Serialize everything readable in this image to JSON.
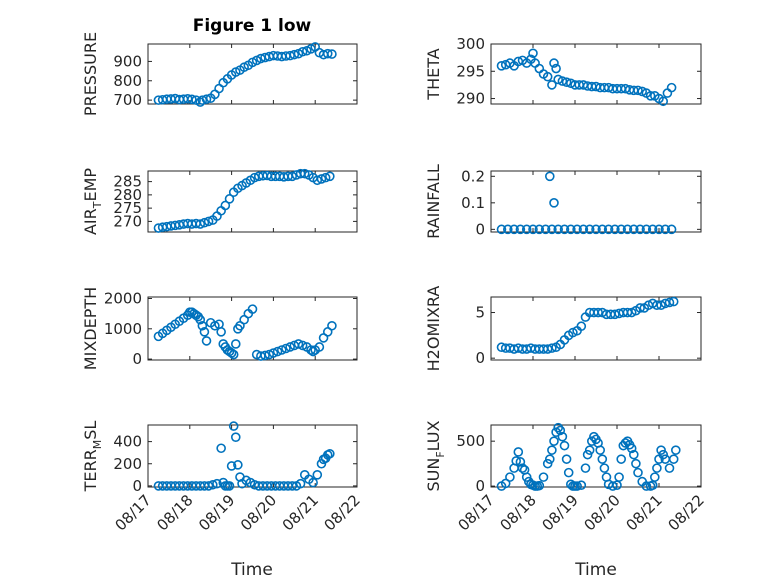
{
  "figure": {
    "title": "Figure 1 low",
    "marker_color": "#0072BD",
    "x_tick_labels": [
      "08/17",
      "08/18",
      "08/19",
      "08/20",
      "08/21",
      "08/22"
    ],
    "x_tick_values": [
      0,
      1,
      2,
      3,
      4,
      5
    ],
    "xlabel": "Time"
  },
  "chart_data": [
    {
      "type": "scatter",
      "ylabel": "PRESSURE",
      "ylabel_sub": "",
      "ylabel_tail": "",
      "ylim": [
        680,
        990
      ],
      "yticks": [
        700,
        800,
        900
      ],
      "grid": true,
      "x": [
        0.25,
        0.35,
        0.45,
        0.55,
        0.65,
        0.75,
        0.85,
        0.95,
        1.05,
        1.15,
        1.25,
        1.3,
        1.4,
        1.5,
        1.6,
        1.7,
        1.8,
        1.9,
        2.0,
        2.1,
        2.2,
        2.3,
        2.4,
        2.5,
        2.6,
        2.7,
        2.8,
        2.9,
        3.0,
        3.1,
        3.2,
        3.3,
        3.4,
        3.5,
        3.6,
        3.7,
        3.8,
        3.9,
        4.0,
        4.1,
        4.2,
        4.3,
        4.4
      ],
      "y": [
        700,
        702,
        705,
        706,
        708,
        703,
        705,
        707,
        704,
        700,
        690,
        700,
        705,
        710,
        730,
        760,
        790,
        810,
        830,
        845,
        855,
        870,
        880,
        895,
        905,
        915,
        920,
        925,
        930,
        928,
        925,
        928,
        930,
        935,
        940,
        950,
        955,
        965,
        975,
        945,
        935,
        940,
        938
      ]
    },
    {
      "type": "scatter",
      "ylabel": "THETA",
      "ylabel_sub": "",
      "ylabel_tail": "",
      "ylim": [
        289,
        300
      ],
      "yticks": [
        290,
        295,
        300
      ],
      "grid": true,
      "x": [
        0.25,
        0.35,
        0.45,
        0.55,
        0.65,
        0.75,
        0.85,
        0.95,
        1.0,
        1.05,
        1.15,
        1.25,
        1.35,
        1.45,
        1.5,
        1.55,
        1.6,
        1.7,
        1.8,
        1.9,
        2.0,
        2.1,
        2.2,
        2.3,
        2.4,
        2.5,
        2.6,
        2.7,
        2.8,
        2.9,
        3.0,
        3.1,
        3.2,
        3.3,
        3.4,
        3.5,
        3.6,
        3.7,
        3.8,
        3.9,
        4.0,
        4.1,
        4.2,
        4.3
      ],
      "y": [
        296,
        296.2,
        296.5,
        296,
        296.8,
        297,
        296.5,
        297.2,
        298.3,
        296.5,
        295.5,
        294.5,
        294,
        292.5,
        296.5,
        295.5,
        293.5,
        293.2,
        293,
        292.8,
        292.5,
        292.5,
        292.5,
        292.3,
        292.2,
        292.2,
        292,
        292,
        292,
        291.8,
        291.8,
        291.8,
        291.8,
        291.6,
        291.5,
        291.5,
        291.3,
        291,
        290.5,
        290.5,
        290,
        289.5,
        291,
        292
      ]
    },
    {
      "type": "scatter",
      "ylabel": "AIR",
      "ylabel_sub": "T",
      "ylabel_tail": "EMP",
      "ylim": [
        266,
        289
      ],
      "yticks": [
        270,
        275,
        280,
        285
      ],
      "grid": true,
      "x": [
        0.25,
        0.35,
        0.45,
        0.55,
        0.65,
        0.75,
        0.85,
        0.95,
        1.05,
        1.15,
        1.25,
        1.35,
        1.45,
        1.55,
        1.65,
        1.75,
        1.85,
        1.95,
        2.05,
        2.15,
        2.25,
        2.35,
        2.45,
        2.55,
        2.65,
        2.75,
        2.85,
        2.95,
        3.05,
        3.15,
        3.25,
        3.35,
        3.45,
        3.55,
        3.65,
        3.75,
        3.85,
        3.95,
        4.05,
        4.15,
        4.25,
        4.35
      ],
      "y": [
        267.5,
        267.8,
        268,
        268.3,
        268.5,
        268.7,
        269,
        269.2,
        269,
        269.2,
        269,
        269.5,
        270,
        270.5,
        272,
        274,
        276,
        278.5,
        281,
        282.5,
        283.5,
        284.5,
        285.5,
        286.5,
        287,
        287.2,
        287.3,
        287,
        287,
        287,
        286.8,
        287,
        287,
        287.5,
        288,
        288,
        287.5,
        286.5,
        285.5,
        286,
        286.5,
        287
      ]
    },
    {
      "type": "scatter",
      "ylabel": "RAINFALL",
      "ylabel_sub": "",
      "ylabel_tail": "",
      "ylim": [
        -0.01,
        0.22
      ],
      "yticks": [
        0,
        0.1,
        0.2
      ],
      "grid": true,
      "x": [
        0.25,
        0.4,
        0.55,
        0.7,
        0.85,
        1.0,
        1.15,
        1.3,
        1.4,
        1.45,
        1.5,
        1.6,
        1.75,
        1.9,
        2.05,
        2.2,
        2.35,
        2.5,
        2.65,
        2.8,
        2.95,
        3.1,
        3.25,
        3.4,
        3.55,
        3.7,
        3.85,
        4.0,
        4.15,
        4.3
      ],
      "y": [
        0,
        0,
        0,
        0,
        0,
        0,
        0,
        0,
        0.2,
        0,
        0.1,
        0,
        0,
        0,
        0,
        0,
        0,
        0,
        0,
        0,
        0,
        0,
        0,
        0,
        0,
        0,
        0,
        0,
        0,
        0
      ]
    },
    {
      "type": "scatter",
      "ylabel": "MIXDEPTH",
      "ylabel_sub": "",
      "ylabel_tail": "",
      "ylim": [
        -30,
        2050
      ],
      "yticks": [
        0,
        1000,
        2000
      ],
      "grid": true,
      "x": [
        0.25,
        0.35,
        0.45,
        0.55,
        0.65,
        0.75,
        0.85,
        0.95,
        1.0,
        1.05,
        1.1,
        1.15,
        1.2,
        1.25,
        1.3,
        1.35,
        1.4,
        1.5,
        1.6,
        1.7,
        1.75,
        1.8,
        1.85,
        1.9,
        1.95,
        2.0,
        2.05,
        2.1,
        2.15,
        2.2,
        2.3,
        2.4,
        2.5,
        2.6,
        2.7,
        2.8,
        2.9,
        3.0,
        3.1,
        3.2,
        3.3,
        3.4,
        3.5,
        3.6,
        3.7,
        3.8,
        3.9,
        3.95,
        4.0,
        4.1,
        4.2,
        4.3,
        4.4
      ],
      "y": [
        750,
        850,
        950,
        1050,
        1150,
        1250,
        1350,
        1450,
        1550,
        1550,
        1500,
        1450,
        1400,
        1300,
        1100,
        900,
        600,
        1200,
        1100,
        1150,
        900,
        500,
        400,
        300,
        250,
        200,
        150,
        500,
        1000,
        1100,
        1300,
        1500,
        1650,
        150,
        100,
        120,
        150,
        200,
        250,
        300,
        350,
        400,
        450,
        500,
        450,
        400,
        300,
        250,
        300,
        400,
        700,
        900,
        1100
      ]
    },
    {
      "type": "scatter",
      "ylabel": "H2OMIXRA",
      "ylabel_sub": "",
      "ylabel_tail": "",
      "ylim": [
        -0.2,
        6.7
      ],
      "yticks": [
        0,
        5
      ],
      "grid": true,
      "x": [
        0.25,
        0.35,
        0.45,
        0.55,
        0.65,
        0.75,
        0.85,
        0.95,
        1.05,
        1.15,
        1.25,
        1.35,
        1.45,
        1.55,
        1.65,
        1.75,
        1.85,
        1.95,
        2.05,
        2.15,
        2.25,
        2.35,
        2.45,
        2.55,
        2.65,
        2.75,
        2.85,
        2.95,
        3.05,
        3.15,
        3.25,
        3.35,
        3.45,
        3.55,
        3.65,
        3.75,
        3.85,
        3.95,
        4.05,
        4.15,
        4.25,
        4.35
      ],
      "y": [
        1.2,
        1.1,
        1.1,
        1.0,
        1.1,
        1.0,
        1.0,
        1.1,
        1.0,
        1.0,
        1.0,
        1.0,
        1.1,
        1.2,
        1.5,
        2.0,
        2.5,
        2.8,
        3.0,
        3.5,
        4.5,
        5.0,
        5.0,
        5.0,
        5.0,
        4.8,
        4.8,
        4.8,
        4.9,
        5.0,
        5.0,
        5.0,
        5.2,
        5.5,
        5.5,
        5.8,
        6.0,
        5.8,
        5.8,
        6.0,
        6.1,
        6.2
      ]
    },
    {
      "type": "scatter",
      "ylabel": "TERR",
      "ylabel_sub": "M",
      "ylabel_tail": "SL",
      "ylim": [
        -10,
        550
      ],
      "yticks": [
        0,
        200,
        400
      ],
      "grid": true,
      "x": [
        0.25,
        0.35,
        0.45,
        0.55,
        0.65,
        0.75,
        0.85,
        0.95,
        1.05,
        1.15,
        1.25,
        1.35,
        1.45,
        1.55,
        1.65,
        1.75,
        1.8,
        1.85,
        1.9,
        1.95,
        2.0,
        2.05,
        2.1,
        2.15,
        2.2,
        2.25,
        2.35,
        2.45,
        2.55,
        2.65,
        2.75,
        2.85,
        2.95,
        3.05,
        3.15,
        3.25,
        3.35,
        3.45,
        3.55,
        3.65,
        3.75,
        3.85,
        3.95,
        4.05,
        4.15,
        4.2,
        4.25,
        4.3,
        4.35
      ],
      "y": [
        0,
        0,
        0,
        0,
        0,
        0,
        0,
        0,
        0,
        0,
        0,
        0,
        0,
        10,
        20,
        340,
        30,
        0,
        0,
        0,
        180,
        540,
        440,
        190,
        80,
        20,
        50,
        30,
        10,
        0,
        0,
        0,
        0,
        0,
        0,
        0,
        0,
        0,
        0,
        20,
        100,
        60,
        30,
        100,
        200,
        240,
        250,
        280,
        290
      ]
    },
    {
      "type": "scatter",
      "ylabel": "SUN",
      "ylabel_sub": "F",
      "ylabel_tail": "LUX",
      "ylim": [
        -10,
        680
      ],
      "yticks": [
        0,
        500
      ],
      "grid": true,
      "x": [
        0.25,
        0.35,
        0.45,
        0.55,
        0.6,
        0.65,
        0.7,
        0.75,
        0.8,
        0.85,
        0.9,
        0.95,
        1.0,
        1.05,
        1.1,
        1.15,
        1.25,
        1.35,
        1.4,
        1.45,
        1.5,
        1.55,
        1.6,
        1.65,
        1.7,
        1.75,
        1.8,
        1.85,
        1.9,
        1.95,
        2.0,
        2.05,
        2.15,
        2.25,
        2.3,
        2.35,
        2.4,
        2.45,
        2.5,
        2.55,
        2.6,
        2.65,
        2.7,
        2.75,
        2.8,
        2.9,
        3.0,
        3.05,
        3.1,
        3.15,
        3.2,
        3.25,
        3.3,
        3.35,
        3.4,
        3.45,
        3.5,
        3.6,
        3.7,
        3.8,
        3.85,
        3.9,
        3.95,
        4.0,
        4.05,
        4.1,
        4.15,
        4.25,
        4.35,
        4.4
      ],
      "y": [
        0,
        30,
        100,
        200,
        280,
        380,
        270,
        200,
        180,
        100,
        50,
        20,
        10,
        0,
        0,
        5,
        100,
        250,
        300,
        400,
        500,
        600,
        650,
        620,
        550,
        450,
        300,
        150,
        20,
        0,
        0,
        0,
        10,
        200,
        350,
        400,
        500,
        550,
        520,
        480,
        400,
        300,
        200,
        100,
        20,
        0,
        10,
        100,
        300,
        450,
        480,
        500,
        460,
        420,
        350,
        250,
        150,
        50,
        0,
        0,
        10,
        100,
        200,
        300,
        400,
        350,
        300,
        200,
        300,
        400
      ]
    }
  ]
}
